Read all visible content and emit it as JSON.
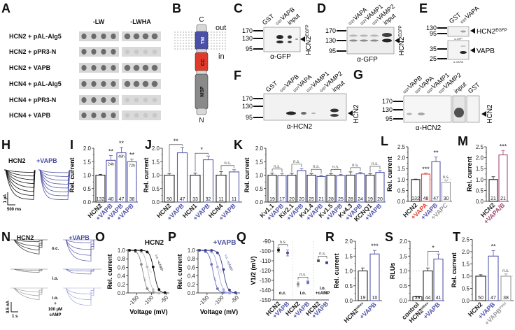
{
  "panel_letters": [
    "A",
    "B",
    "C",
    "D",
    "E",
    "F",
    "G",
    "H",
    "I",
    "J",
    "K",
    "L",
    "M",
    "N",
    "O",
    "P",
    "Q",
    "R",
    "S",
    "T"
  ],
  "colors": {
    "black": "#222222",
    "vapb_blue": "#5458a8",
    "vapa_red": "#e0443a",
    "vapc_gray": "#9a9a9a",
    "vapab_mauve": "#a24a72",
    "tm_blue": "#4a4fa8",
    "cc_red": "#e03a2a",
    "msp_gray": "#8a8a8a"
  },
  "panel_a": {
    "columns": [
      "-LW",
      "-LWHA"
    ],
    "rows": [
      {
        "label": "HCN2 + pAL-Alg5",
        "lwha_growth": "strong"
      },
      {
        "label": "HCN2 + pPR3-N",
        "lwha_growth": "weak"
      },
      {
        "label": "HCN2 + VAPB",
        "lwha_growth": "strong"
      },
      {
        "label": "HCN4 + pAL-Alg5",
        "lwha_growth": "strong"
      },
      {
        "label": "HCN4 + pPR3-N",
        "lwha_growth": "weak"
      },
      {
        "label": "HCN4 + VAPB",
        "lwha_growth": "weak"
      }
    ]
  },
  "panel_b": {
    "c_term": "C",
    "n_term": "N",
    "out": "out",
    "in": "in",
    "domains": [
      "TM",
      "CC",
      "MSP"
    ]
  },
  "panel_c": {
    "lanes": [
      {
        "sup": "",
        "name": "GST"
      },
      {
        "sup": "GST",
        "name": "VAPB"
      },
      {
        "sup": "",
        "name": "input"
      }
    ],
    "markers": [
      "170",
      "130",
      "95"
    ],
    "antibody": "α-GFP",
    "target": "HCN2",
    "target_sup": "EGFP"
  },
  "panel_d": {
    "lanes": [
      {
        "sup": "GST",
        "name": "VAPA"
      },
      {
        "sup": "GST",
        "name": "VAMP1"
      },
      {
        "sup": "GST",
        "name": "VAMP2"
      },
      {
        "sup": "",
        "name": "input"
      }
    ],
    "markers": [
      "170",
      "130",
      "95"
    ],
    "antibody": "α-GFP",
    "target": "HCN2",
    "target_sup": "EGFP"
  },
  "panel_e": {
    "lanes": [
      {
        "sup": "",
        "name": "GST"
      },
      {
        "sup": "GST",
        "name": "VAPA"
      }
    ],
    "markers_top": [
      "130",
      "95"
    ],
    "markers_bottom": [
      "35",
      "25"
    ],
    "antibody_top": "α-GFP",
    "antibody_bottom": "α-VAPB",
    "target_top": "HCN2",
    "target_top_sup": "EGFP",
    "target_bottom": "VAPB"
  },
  "panel_f": {
    "lanes": [
      {
        "sup": "",
        "name": "GST"
      },
      {
        "sup": "GST",
        "name": "VAPB"
      },
      {
        "sup": "GST",
        "name": "VAPA"
      },
      {
        "sup": "GST",
        "name": "VAMP1"
      },
      {
        "sup": "GST",
        "name": "VAMP2"
      },
      {
        "sup": "",
        "name": "input"
      }
    ],
    "markers": [
      "170",
      "130",
      "95"
    ],
    "antibody": "α-HCN2",
    "target": "HCN2"
  },
  "panel_g": {
    "lanes": [
      {
        "sup": "GST",
        "name": "VAPB"
      },
      {
        "sup": "GST",
        "name": "VAPA"
      },
      {
        "sup": "GST",
        "name": "VAMP1"
      },
      {
        "sup": "GST",
        "name": "VAMP2"
      },
      {
        "sup": "",
        "name": "input"
      },
      {
        "sup": "",
        "name": "GST"
      }
    ],
    "markers": [
      "170",
      "130",
      "95"
    ],
    "antibody": "α-HCN2",
    "target": "HCN2"
  },
  "panel_h": {
    "left_title": "HCN2",
    "right_title": "+VAPB",
    "scale_y": "1 µA",
    "scale_x": "500 ms"
  },
  "panel_n": {
    "left_title": "HCN2",
    "right_title": "+VAPB",
    "conditions": [
      "o.c.",
      "i.o.",
      "i.o.",
      "+",
      "100 µM",
      "cAMP"
    ],
    "scale_y": "0.5 nA",
    "scale_x": "1 s"
  },
  "chart_data": [
    {
      "panel": "I",
      "type": "bar",
      "categories": [
        "HCN2",
        "+VAPB",
        "+VAPB",
        "+VAPB"
      ],
      "category_colors": [
        "#222222",
        "#5458a8",
        "#5458a8",
        "#5458a8"
      ],
      "values": [
        1.0,
        1.55,
        1.83,
        1.5
      ],
      "errors": [
        0.03,
        0.18,
        0.2,
        0.1
      ],
      "n": [
        "132",
        "40",
        "47",
        "38"
      ],
      "bar_labels": [
        "",
        "24h",
        "48h",
        "72h"
      ],
      "significance": [
        "",
        "**",
        "**",
        "**"
      ],
      "ylabel": "Rel. current",
      "ylim": [
        0,
        2.0
      ],
      "yticks": [
        "0.0",
        "0.5",
        "1.0",
        "1.5",
        "2.0"
      ],
      "reference_line": 1.0
    },
    {
      "panel": "J",
      "type": "bar",
      "categories": [
        "HCN2",
        "+VAPB",
        "HCN1",
        "+VAPB",
        "HCN4",
        "+VAPB"
      ],
      "category_colors": [
        "#222222",
        "#5458a8",
        "#222222",
        "#5458a8",
        "#222222",
        "#5458a8"
      ],
      "values": [
        1.0,
        1.83,
        1.0,
        1.57,
        1.0,
        1.12
      ],
      "errors": [
        0.06,
        0.2,
        0.08,
        0.14,
        0.13,
        0.08
      ],
      "n": [
        "50",
        "47",
        "33",
        "32",
        "11",
        "11"
      ],
      "brackets": [
        {
          "pair": [
            0,
            1
          ],
          "label": "**"
        },
        {
          "pair": [
            2,
            3
          ],
          "label": "*"
        },
        {
          "pair": [
            4,
            5
          ],
          "label": "n.s."
        }
      ],
      "ylabel": "Rel. current",
      "ylim": [
        0,
        2.0
      ],
      "yticks": [
        "0.0",
        "0.5",
        "1.0",
        "1.5",
        "2.0"
      ],
      "reference_line": 1.0
    },
    {
      "panel": "K",
      "type": "bar",
      "categories": [
        "Kv1.1",
        "+VAPB",
        "Kir2.1",
        "+VAPB",
        "Kv1.4",
        "+VAPB",
        "Kv1.5",
        "+VAPB",
        "Kv4.3",
        "+VAPB",
        "KCNQ1",
        "+VAPB"
      ],
      "category_colors": [
        "#222222",
        "#5458a8",
        "#222222",
        "#5458a8",
        "#222222",
        "#5458a8",
        "#222222",
        "#5458a8",
        "#222222",
        "#5458a8",
        "#222222",
        "#5458a8"
      ],
      "values": [
        1.0,
        0.98,
        1.0,
        1.17,
        1.0,
        0.95,
        1.0,
        0.98,
        1.0,
        1.05,
        1.0,
        1.1
      ],
      "errors": [
        0.07,
        0.08,
        0.07,
        0.08,
        0.06,
        0.05,
        0.05,
        0.05,
        0.12,
        0.05,
        0.05,
        0.07
      ],
      "n": [
        "19",
        "17",
        "20",
        "20",
        "25",
        "21",
        "28",
        "25",
        "28",
        "24",
        "19",
        "20"
      ],
      "brackets": [
        {
          "pair": [
            0,
            1
          ],
          "label": "n.s."
        },
        {
          "pair": [
            2,
            3
          ],
          "label": "n.s."
        },
        {
          "pair": [
            4,
            5
          ],
          "label": "n.s."
        },
        {
          "pair": [
            6,
            7
          ],
          "label": "n.s."
        },
        {
          "pair": [
            8,
            9
          ],
          "label": "n.s."
        },
        {
          "pair": [
            10,
            11
          ],
          "label": "n.s."
        }
      ],
      "ylabel": "Rel. current",
      "ylim": [
        0,
        2.0
      ],
      "yticks": [
        "0.0",
        "0.5",
        "1.0",
        "1.5",
        "2.0"
      ],
      "reference_line": 1.0
    },
    {
      "panel": "L",
      "type": "bar",
      "categories": [
        "HCN2",
        "+VAPA",
        "+VAPB",
        "+VAPC"
      ],
      "category_colors": [
        "#222222",
        "#e0443a",
        "#5458a8",
        "#9a9a9a"
      ],
      "values": [
        1.0,
        1.25,
        1.82,
        0.88
      ],
      "errors": [
        0.02,
        0.04,
        0.22,
        0.08
      ],
      "n": [
        "132",
        "48",
        "47",
        "30"
      ],
      "significance": [
        "",
        "***",
        "**",
        "n.s."
      ],
      "ylabel": "Rel. current",
      "ylim": [
        0,
        2.5
      ],
      "yticks": [
        "0.0",
        "0.5",
        "1.0",
        "1.5",
        "2.0",
        "2.5"
      ],
      "reference_line": 1.0
    },
    {
      "panel": "M",
      "type": "bar",
      "categories": [
        "HCN2",
        "+VAPA/B"
      ],
      "category_colors": [
        "#222222",
        "#a24a72"
      ],
      "values": [
        1.0,
        2.13
      ],
      "errors": [
        0.13,
        0.2
      ],
      "n": [
        "21",
        "21"
      ],
      "significance": [
        "",
        "***"
      ],
      "ylabel": "Rel. current",
      "ylim": [
        0,
        2.5
      ],
      "yticks": [
        "0.0",
        "0.5",
        "1.0",
        "1.5",
        "2.0",
        "2.5"
      ],
      "reference_line": 1.0
    },
    {
      "panel": "O",
      "type": "line",
      "title": "HCN2",
      "xlabel": "Voltage (mV)",
      "ylabel": "Rel. current",
      "xlim": [
        -180,
        -40
      ],
      "ylim": [
        0,
        1.0
      ],
      "xticks": [
        "-150",
        "-100",
        "-50"
      ],
      "yticks": [
        "0.0",
        "0.2",
        "0.4",
        "0.6",
        "0.8",
        "1.0"
      ],
      "x": [
        -175,
        -155,
        -135,
        -115,
        -95,
        -75,
        -55
      ],
      "series": [
        {
          "name": "i.o.",
          "color": "#8a8a8a",
          "v_half": -130,
          "y": [
            1.0,
            0.97,
            0.67,
            0.1,
            0.01,
            0.0,
            0.0
          ]
        },
        {
          "name": "o.c.",
          "color": "#bdbdbd",
          "v_half": -112,
          "y": [
            1.0,
            1.0,
            0.96,
            0.61,
            0.08,
            0.01,
            0.0
          ]
        },
        {
          "name": "i.o. +cAMP",
          "color": "#111111",
          "v_half": -92,
          "y": [
            1.0,
            1.0,
            1.0,
            0.96,
            0.61,
            0.08,
            0.01
          ]
        }
      ]
    },
    {
      "panel": "P",
      "type": "line",
      "title": "+VAPB",
      "xlabel": "Voltage (mV)",
      "ylabel": "Rel. current",
      "xlim": [
        -180,
        -40
      ],
      "ylim": [
        0,
        1.0
      ],
      "xticks": [
        "-150",
        "-100",
        "-50"
      ],
      "yticks": [
        "0.0",
        "0.2",
        "0.4",
        "0.6",
        "0.8",
        "1.0"
      ],
      "x": [
        -175,
        -155,
        -135,
        -115,
        -95,
        -75,
        -55
      ],
      "series": [
        {
          "name": "i.o.",
          "color": "#6a6fc0",
          "v_half": -130,
          "y": [
            1.0,
            0.97,
            0.67,
            0.1,
            0.01,
            0.0,
            0.0
          ]
        },
        {
          "name": "o.c.",
          "color": "#a9abdc",
          "v_half": -112,
          "y": [
            1.0,
            1.0,
            0.96,
            0.61,
            0.08,
            0.01,
            0.0
          ]
        },
        {
          "name": "i.o. +cAMP",
          "color": "#3a3f90",
          "v_half": -95,
          "y": [
            1.0,
            1.0,
            1.0,
            0.94,
            0.55,
            0.07,
            0.01
          ]
        }
      ]
    },
    {
      "panel": "Q",
      "type": "scatter",
      "ylabel": "V1/2 (mV)",
      "ylabel_sub": "1/2",
      "ylim": [
        -150,
        -90
      ],
      "yticks": [
        "-90",
        "-100",
        "-110",
        "-120",
        "-130",
        "-140",
        "-150"
      ],
      "categories": [
        "HCN2",
        "+VAPB",
        "HCN2",
        "+VAPB",
        "HCN2",
        "+VAPB"
      ],
      "category_colors": [
        "#222222",
        "#5458a8",
        "#222222",
        "#5458a8",
        "#222222",
        "#5458a8"
      ],
      "point_colors": [
        "#111111",
        "#4a4fa0",
        "#888888",
        "#6a6fc0",
        "#555555",
        "#3a3f90"
      ],
      "values": [
        -99,
        -102,
        -134,
        -132,
        -110,
        -112
      ],
      "errors": [
        2,
        3,
        2.5,
        1.5,
        1,
        1
      ],
      "groups": [
        "o.c.",
        "i.o.",
        "i.o.",
        "+cAMP"
      ],
      "brackets": [
        {
          "pair": [
            0,
            1
          ],
          "label": "n.s."
        },
        {
          "pair": [
            2,
            3
          ],
          "label": "n.s."
        },
        {
          "pair": [
            4,
            5
          ],
          "label": "n.s."
        }
      ]
    },
    {
      "panel": "R",
      "type": "bar",
      "categories": [
        "HCN2",
        "+VAPB"
      ],
      "category_sups": [
        "HAex",
        ""
      ],
      "category_colors": [
        "#222222",
        "#5458a8"
      ],
      "values": [
        1.0,
        1.57
      ],
      "errors": [
        0.1,
        0.12
      ],
      "n": [
        "19",
        "10"
      ],
      "significance": [
        "",
        "***"
      ],
      "ylabel": "Rel. current",
      "ylim": [
        0,
        2.0
      ],
      "yticks": [
        "0.0",
        "0.5",
        "1.0",
        "1.5",
        "2.0"
      ],
      "reference_line": 1.0
    },
    {
      "panel": "S",
      "type": "bar",
      "categories": [
        "control",
        "HCN2",
        "+VAPB"
      ],
      "category_sups": [
        "",
        "HAex",
        ""
      ],
      "category_colors": [
        "#222222",
        "#222222",
        "#5458a8"
      ],
      "values": [
        0.13,
        1.0,
        1.4
      ],
      "errors": [
        0.0,
        0.1,
        0.17
      ],
      "n": [
        "39",
        "44",
        "41"
      ],
      "brackets": [
        {
          "pair": [
            1,
            2
          ],
          "label": "*"
        }
      ],
      "ylabel": "RLUs",
      "ylim": [
        0,
        2.0
      ],
      "yticks": [
        "0.0",
        "0.5",
        "1.0",
        "1.5",
        "2.0"
      ],
      "reference_line": 1.0
    },
    {
      "panel": "T",
      "type": "bar",
      "categories": [
        "HCN2",
        "+VAPB",
        "+VAPB"
      ],
      "category_sups": [
        "",
        "",
        "P56S"
      ],
      "category_colors": [
        "#222222",
        "#5458a8",
        "#9a9a9a"
      ],
      "values": [
        1.0,
        1.82,
        1.0
      ],
      "errors": [
        0.06,
        0.22,
        0.09
      ],
      "n": [
        "50",
        "47",
        "38"
      ],
      "significance": [
        "",
        "**",
        "n.s."
      ],
      "ylabel": "Rel. current",
      "ylim": [
        0,
        2.5
      ],
      "yticks": [
        "0.0",
        "0.5",
        "1.0",
        "1.5",
        "2.0",
        "2.5"
      ],
      "reference_line": 1.0
    }
  ]
}
